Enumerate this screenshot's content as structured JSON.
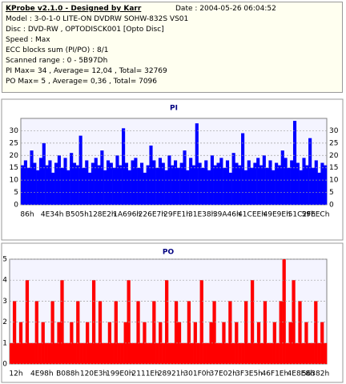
{
  "header": {
    "title": "KProbe v2.1.0 - Designed by Karr",
    "date": "Date : 2004-05-26 06:04:52",
    "lines": [
      "Model : 3-0-1-0 LITE-ON DVDRW SOHW-832S  VS01",
      "Disc : DVD-RW , OPTODISCK001 [Opto Disc]",
      "Speed : Max",
      "ECC blocks sum (PI/PO) : 8/1",
      "Scanned range : 0 - 5B97Dh",
      "PI Max= 34 , Average= 12,04 , Total= 32769",
      "PO Max= 5 , Average= 0,36 , Total= 7096"
    ]
  },
  "chart_data": [
    {
      "type": "bar",
      "title": "PI",
      "color": "#0000ff",
      "grid": true,
      "right_axis": true,
      "ylim": [
        0,
        35
      ],
      "yticks": [
        0,
        5,
        10,
        15,
        20,
        25,
        30
      ],
      "x_labels": [
        "86h",
        "4E34h",
        "B505h",
        "128E2h",
        "1A696h",
        "226E7h",
        "29FE1h",
        "31E38h",
        "39A46h",
        "41CEEh",
        "49E9Eh",
        "51C2Fh",
        "59EECh"
      ],
      "values": [
        16,
        18,
        15,
        22,
        17,
        14,
        19,
        25,
        16,
        18,
        13,
        17,
        20,
        15,
        19,
        14,
        21,
        17,
        16,
        28,
        15,
        18,
        13,
        17,
        19,
        16,
        22,
        14,
        18,
        17,
        15,
        20,
        16,
        31,
        17,
        14,
        18,
        19,
        15,
        17,
        13,
        16,
        24,
        18,
        15,
        19,
        17,
        14,
        20,
        16,
        18,
        15,
        17,
        22,
        14,
        19,
        16,
        33,
        17,
        15,
        18,
        14,
        20,
        16,
        17,
        19,
        15,
        18,
        13,
        21,
        17,
        16,
        29,
        14,
        18,
        15,
        17,
        19,
        16,
        20,
        15,
        18,
        14,
        17,
        16,
        22,
        19,
        15,
        18,
        34,
        17,
        14,
        19,
        16,
        27,
        15,
        18,
        13,
        17,
        16
      ]
    },
    {
      "type": "bar",
      "title": "PO",
      "color": "#ff0000",
      "grid": true,
      "right_axis": false,
      "ylim": [
        0,
        5
      ],
      "yticks": [
        0,
        1,
        2,
        3,
        4,
        5
      ],
      "x_labels": [
        "12h",
        "4E98h",
        "B088h",
        "120E3h",
        "199E0h",
        "2111Eh",
        "28921h",
        "301F0h",
        "37E02h",
        "3F3E5h",
        "46F1Eh",
        "4E8E8h",
        "56382h"
      ],
      "values": [
        1,
        3,
        1,
        2,
        1,
        4,
        1,
        1,
        3,
        1,
        2,
        1,
        1,
        3,
        1,
        2,
        4,
        1,
        1,
        2,
        1,
        3,
        1,
        1,
        2,
        1,
        4,
        1,
        3,
        1,
        1,
        2,
        1,
        3,
        1,
        1,
        2,
        4,
        1,
        1,
        3,
        1,
        2,
        1,
        1,
        3,
        1,
        2,
        1,
        4,
        1,
        1,
        3,
        2,
        1,
        1,
        3,
        1,
        2,
        1,
        4,
        1,
        1,
        2,
        3,
        1,
        1,
        2,
        1,
        3,
        1,
        2,
        1,
        1,
        3,
        1,
        4,
        1,
        2,
        1,
        3,
        1,
        1,
        2,
        1,
        3,
        5,
        1,
        2,
        4,
        1,
        3,
        1,
        2,
        1,
        1,
        3,
        1,
        2,
        1
      ]
    }
  ]
}
